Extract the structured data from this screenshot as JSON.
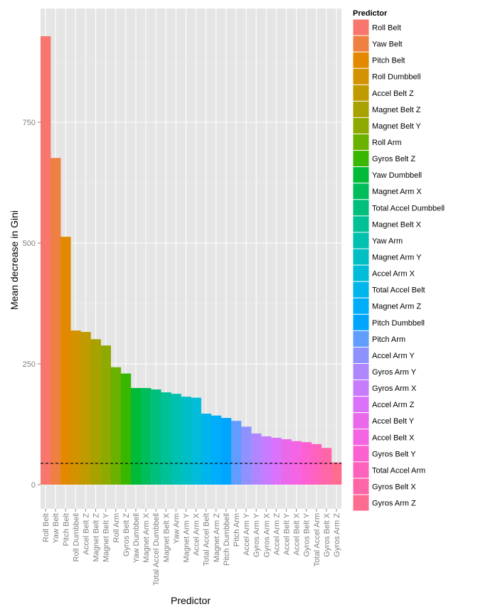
{
  "chart_data": {
    "type": "bar",
    "title": "",
    "xlabel": "Predictor",
    "ylabel": "Mean decrease in Gini",
    "ylim": [
      -40,
      975
    ],
    "yticks": [
      0,
      250,
      500,
      750
    ],
    "grid": true,
    "legend_title": "Predictor",
    "legend_position": "right",
    "reference_line": {
      "y": 44,
      "style": "dashed"
    },
    "categories": [
      "Roll Belt",
      "Yaw Belt",
      "Pitch Belt",
      "Roll Dumbbell",
      "Accel Belt Z",
      "Magnet Belt Z",
      "Magnet Belt Y",
      "Roll Arm",
      "Gyros Belt Z",
      "Yaw Dumbbell",
      "Magnet Arm X",
      "Total Accel Dumbbell",
      "Magnet Belt X",
      "Yaw Arm",
      "Magnet Arm Y",
      "Accel Arm X",
      "Total Accel Belt",
      "Magnet Arm Z",
      "Pitch Dumbbell",
      "Pitch Arm",
      "Accel Arm Y",
      "Gyros Arm Y",
      "Gyros Arm X",
      "Accel Arm Z",
      "Accel Belt Y",
      "Accel Belt X",
      "Gyros Belt Y",
      "Total Accel Arm",
      "Gyros Belt X",
      "Gyros Arm Z"
    ],
    "values": [
      928,
      676,
      513,
      319,
      316,
      301,
      288,
      243,
      230,
      200,
      200,
      197,
      191,
      188,
      182,
      180,
      147,
      143,
      138,
      132,
      120,
      106,
      100,
      97,
      94,
      90,
      88,
      84,
      76,
      46
    ],
    "colors": [
      "#F8766D",
      "#EE8042",
      "#E38900",
      "#D39200",
      "#C09B00",
      "#A8A200",
      "#8EAA00",
      "#6BB100",
      "#39B600",
      "#00BA38",
      "#00BD5C",
      "#00BF7D",
      "#00C096",
      "#00C0AF",
      "#00BFC4",
      "#00BCD8",
      "#00B5EB",
      "#00ADFA",
      "#00A5FF",
      "#619CFF",
      "#8F91FF",
      "#AE87FF",
      "#C77CFF",
      "#DB72FB",
      "#EA69EB",
      "#F564E3",
      "#FD61D1",
      "#FF62BC",
      "#FF66A8",
      "#FF6C91"
    ]
  }
}
